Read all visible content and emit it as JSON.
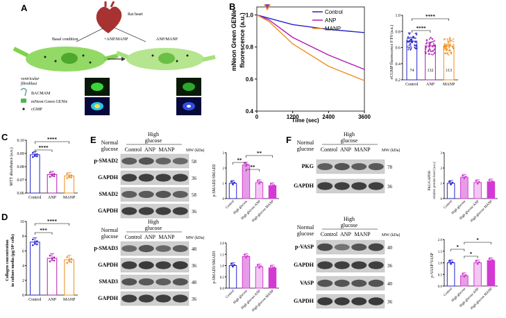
{
  "panels": {
    "A": {
      "label": "A",
      "rat_heart": "Rat heart",
      "basal": "Basal condition",
      "plus_anp_manp": "+ANP/MANP",
      "anp_manp": "ANP/MANP",
      "ventricular": "ventricular",
      "fibroblast": "fibroblast",
      "legend": [
        "BACMAM",
        "mNeon Green GENIe",
        "cGMP"
      ]
    },
    "B": {
      "label": "B",
      "line": {
        "ylabel": [
          "mNeon Green GENIe",
          "fluorescence (a.u.)"
        ],
        "xlabel": "Time (sec)",
        "yticks": [
          "1.0",
          "0.8",
          "0.6",
          "0.4"
        ],
        "xticks": [
          "0",
          "1200",
          "2400",
          "3600"
        ],
        "legend": [
          "Control",
          "ANP",
          "MANP"
        ],
        "colors": [
          "#2222cc",
          "#b01ab0",
          "#f08c1a"
        ]
      },
      "bar": {
        "ylabel": "eCGMP fluorescence F/F0 (a.u.)",
        "yticks": [
          "1.0",
          "0.8",
          "0.6",
          "0.4",
          "0.2"
        ],
        "categories": [
          "Control",
          "ANP",
          "MANP"
        ],
        "n_labels": [
          "74",
          "132",
          "113"
        ],
        "sig": [
          "****",
          "****"
        ]
      }
    },
    "C": {
      "label": "C",
      "ylabel": "MTT absorbance (a.u.)",
      "yticks": [
        "0.10",
        "0.09",
        "0.08",
        "0.07",
        "0.06"
      ],
      "categories": [
        "Control",
        "ANP",
        "MANP"
      ],
      "sig": [
        "****",
        "****"
      ]
    },
    "D": {
      "label": "D",
      "ylabel": [
        "Collagen concentration",
        "in culture media (μg/10⁶ cells)"
      ],
      "yticks": [
        "10",
        "8",
        "6",
        "4",
        "2",
        "0"
      ],
      "categories": [
        "Control",
        "ANP",
        "MANP"
      ],
      "sig": [
        "***",
        "****"
      ]
    },
    "E": {
      "label": "E",
      "header_top": {
        "normal": [
          "Normal",
          "glucose"
        ],
        "high": [
          "High",
          "glucose"
        ],
        "cols": [
          "Control",
          "ANP",
          "MANP"
        ],
        "mw": "MW (kDa)"
      },
      "header_bottom": {
        "normal": [
          "Normal",
          "glucose"
        ],
        "high": [
          "High",
          "glucose"
        ],
        "cols": [
          "Control",
          "ANP",
          "MANP"
        ],
        "mw": "MW (kDa)"
      },
      "blots": [
        {
          "name": "p-SMAD2",
          "mw": "58"
        },
        {
          "name": "GAPDH",
          "mw": "36"
        },
        {
          "name": "SMAD2",
          "mw": "58"
        },
        {
          "name": "GAPDH",
          "mw": "36"
        },
        {
          "name": "p-SMAD3",
          "mw": "48"
        },
        {
          "name": "GAPDH",
          "mw": "36"
        },
        {
          "name": "SMAD3",
          "mw": "48"
        },
        {
          "name": "GAPDH",
          "mw": "36"
        }
      ],
      "bar1": {
        "ylabel": "p-SMAD2/SMAD2",
        "yticks": [
          "3",
          "2",
          "1",
          "0"
        ],
        "sig": [
          "**",
          "**",
          "**"
        ]
      },
      "bar2": {
        "ylabel": "p-SMAD3/SMAD3",
        "yticks": [
          "2.0",
          "1.5",
          "1.0",
          "0.5",
          "0.0"
        ]
      },
      "categories": [
        "Control",
        "High glucose",
        "High glucose ANP",
        "High glucose MANP"
      ]
    },
    "F": {
      "label": "F",
      "header_top": {
        "normal": [
          "Normal",
          "glucose"
        ],
        "high": [
          "High",
          "glucose"
        ],
        "cols": [
          "Control",
          "ANP",
          "MANP"
        ],
        "mw": "MW (kDa)"
      },
      "header_bottom": {
        "high": [
          "High",
          "glucose"
        ],
        "normal": [
          "Normal",
          "glucose"
        ],
        "cols": [
          "Control",
          "ANP",
          "MANP"
        ],
        "mw": "MW (kDa)"
      },
      "blots": [
        {
          "name": "PKG",
          "mw": "78"
        },
        {
          "name": "GAPDH",
          "mw": "36"
        },
        {
          "name": "p-VASP",
          "mw": "40"
        },
        {
          "name": "GAPDH",
          "mw": "36"
        },
        {
          "name": "VASP",
          "mw": "40"
        },
        {
          "name": "GAPDH",
          "mw": "36"
        }
      ],
      "bar1": {
        "ylabel": [
          "PKG/GAPDH",
          "relative protein level (a.u.)"
        ],
        "yticks": [
          "3",
          "2",
          "1",
          "0"
        ]
      },
      "bar2": {
        "ylabel": "p-VASP/VASP",
        "yticks": [
          "2.0",
          "1.5",
          "1.0",
          "0.5",
          "0.0"
        ],
        "sig": [
          "*",
          "*",
          "*"
        ]
      },
      "categories": [
        "Control",
        "High glucose",
        "High glucose ANP",
        "High glucose MANP"
      ]
    }
  },
  "chart_data": [
    {
      "id": "B-line",
      "type": "line",
      "x": [
        0,
        400,
        1200,
        2400,
        3600
      ],
      "series": [
        {
          "name": "Control",
          "values": [
            1.0,
            0.98,
            0.94,
            0.91,
            0.89
          ]
        },
        {
          "name": "ANP",
          "values": [
            1.0,
            0.97,
            0.86,
            0.75,
            0.66
          ]
        },
        {
          "name": "MANP",
          "values": [
            1.0,
            0.96,
            0.82,
            0.68,
            0.59
          ]
        }
      ],
      "xlim": [
        0,
        3600
      ],
      "ylim": [
        0.4,
        1.05
      ]
    },
    {
      "id": "B-bar",
      "type": "bar",
      "categories": [
        "Control",
        "ANP",
        "MANP"
      ],
      "values": [
        0.68,
        0.62,
        0.62
      ],
      "ylim": [
        0.2,
        1.0
      ]
    },
    {
      "id": "C",
      "type": "bar",
      "categories": [
        "Control",
        "ANP",
        "MANP"
      ],
      "values": [
        0.089,
        0.074,
        0.073
      ],
      "ylim": [
        0.06,
        0.1
      ]
    },
    {
      "id": "D",
      "type": "bar",
      "categories": [
        "Control",
        "ANP",
        "MANP"
      ],
      "values": [
        7.2,
        5.0,
        4.8
      ],
      "ylim": [
        0,
        10
      ]
    },
    {
      "id": "E-bar1",
      "type": "bar",
      "categories": [
        "Control",
        "High glucose",
        "High glucose ANP",
        "High glucose MANP"
      ],
      "values": [
        1.0,
        2.2,
        1.05,
        0.85
      ],
      "ylim": [
        0,
        3
      ]
    },
    {
      "id": "E-bar2",
      "type": "bar",
      "categories": [
        "Control",
        "High glucose",
        "High glucose ANP",
        "High glucose MANP"
      ],
      "values": [
        1.0,
        1.4,
        0.95,
        0.9
      ],
      "ylim": [
        0,
        2
      ]
    },
    {
      "id": "F-bar1",
      "type": "bar",
      "categories": [
        "Control",
        "High glucose",
        "High glucose ANP",
        "High glucose MANP"
      ],
      "values": [
        1.0,
        1.4,
        1.05,
        1.1
      ],
      "ylim": [
        0,
        3
      ]
    },
    {
      "id": "F-bar2",
      "type": "bar",
      "categories": [
        "Control",
        "High glucose",
        "High glucose ANP",
        "High glucose MANP"
      ],
      "values": [
        1.0,
        0.45,
        1.0,
        1.1
      ],
      "ylim": [
        0,
        2
      ]
    }
  ],
  "colors": {
    "control": "#2222cc",
    "anp": "#b01ab0",
    "manp": "#f08c1a",
    "highglucose": "#d33ad3",
    "cell": "#7fd34a"
  }
}
